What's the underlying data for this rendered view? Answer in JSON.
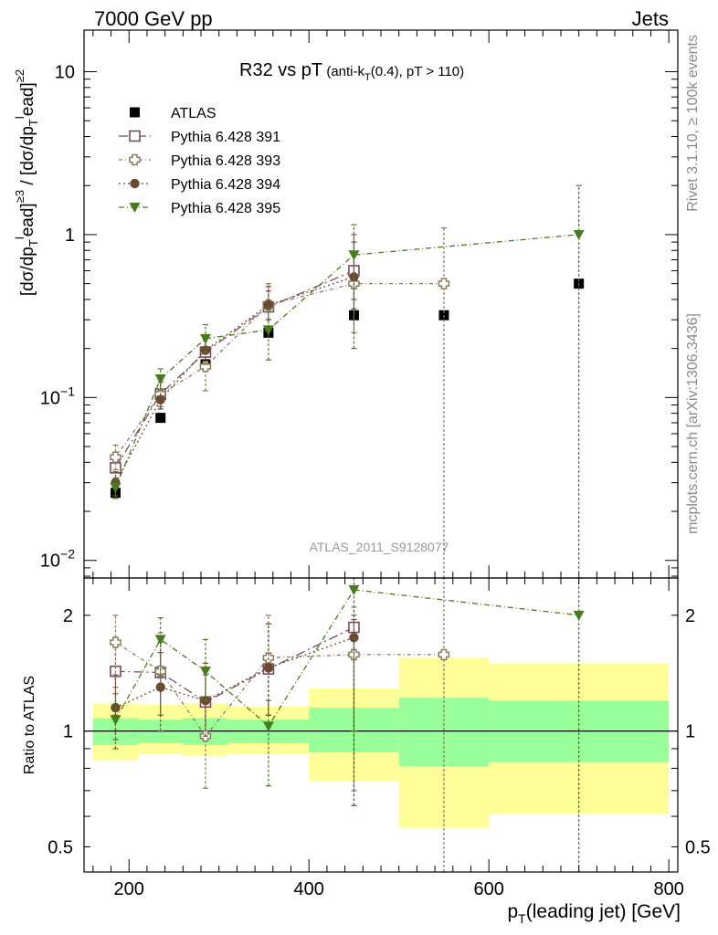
{
  "header": {
    "left": "7000 GeV pp",
    "right": "Jets"
  },
  "side_labels": {
    "rivet": "Rivet 3.1.10, ≥ 100k events",
    "mcplots": "mcplots.cern.ch [arXiv:1306.3436]"
  },
  "chart_data": [
    {
      "type": "scatter",
      "panel": "main",
      "title": "R32 vs pT",
      "title_sub": "(anti-k_T(0.4), pT > 110)",
      "watermark": "ATLAS_2011_S9128077",
      "ylabel": "[dσ/dp_T^lead]^{≥3} / [dσ/dp_T^lead]^{≥2}",
      "yscale": "log",
      "xlim": [
        150,
        810
      ],
      "ylim": [
        0.0078,
        18
      ],
      "y_ticks": [
        {
          "value": 0.01,
          "label": "10",
          "exp": "−2"
        },
        {
          "value": 0.1,
          "label": "10",
          "exp": "−1"
        },
        {
          "value": 1,
          "label": "1",
          "exp": ""
        },
        {
          "value": 10,
          "label": "10",
          "exp": ""
        }
      ],
      "legend_position": "top-left",
      "series": [
        {
          "name": "ATLAS",
          "marker": "filled-square",
          "color": "#000000",
          "dash": "none",
          "x": [
            185,
            235,
            285,
            355,
            450,
            550,
            700
          ],
          "y": [
            0.026,
            0.075,
            0.16,
            0.25,
            0.32,
            0.32,
            0.5
          ],
          "err_lo": [
            0,
            0,
            0,
            0,
            0,
            0,
            0
          ],
          "err_hi": [
            0,
            0,
            0,
            0,
            0,
            0,
            0
          ]
        },
        {
          "name": "Pythia 6.428 391",
          "marker": "open-square",
          "color": "#7b4b5e",
          "dash": "10,4,2,4",
          "x": [
            185,
            235,
            285,
            355,
            450
          ],
          "y": [
            0.037,
            0.105,
            0.19,
            0.36,
            0.6
          ],
          "err_lo": [
            0.03,
            0.088,
            0.16,
            0.3,
            0.4
          ],
          "err_hi": [
            0.044,
            0.124,
            0.23,
            0.45,
            1.0
          ]
        },
        {
          "name": "Pythia 6.428 393",
          "marker": "open-cross",
          "color": "#8a7a5a",
          "dash": "4,3,1,3",
          "x": [
            185,
            235,
            285,
            355,
            450,
            550
          ],
          "y": [
            0.043,
            0.105,
            0.155,
            0.37,
            0.5,
            0.5
          ],
          "err_lo": [
            0.036,
            0.085,
            0.11,
            0.27,
            0.25,
            0.004
          ],
          "err_hi": [
            0.051,
            0.128,
            0.2,
            0.5,
            1.0,
            1.1
          ]
        },
        {
          "name": "Pythia 6.428 394",
          "marker": "filled-circle",
          "color": "#6b4a32",
          "dash": "2,3",
          "x": [
            185,
            235,
            285,
            355,
            450
          ],
          "y": [
            0.03,
            0.097,
            0.195,
            0.37,
            0.55
          ],
          "err_lo": [
            0.025,
            0.085,
            0.16,
            0.3,
            0.35
          ],
          "err_hi": [
            0.035,
            0.11,
            0.23,
            0.48,
            0.9
          ]
        },
        {
          "name": "Pythia 6.428 395",
          "marker": "filled-triangle-down",
          "color": "#4a7a1e",
          "dash": "6,3,1,3",
          "x": [
            185,
            235,
            285,
            355,
            450,
            700
          ],
          "y": [
            0.028,
            0.13,
            0.23,
            0.26,
            0.75,
            1.0
          ],
          "err_lo": [
            0.024,
            0.11,
            0.19,
            0.17,
            0.2,
            0.004
          ],
          "err_hi": [
            0.032,
            0.15,
            0.28,
            0.35,
            1.15,
            2.0
          ]
        }
      ]
    },
    {
      "type": "scatter",
      "panel": "ratio",
      "ylabel": "Ratio to ATLAS",
      "xlabel": "p_T(leading jet) [GeV]",
      "yscale": "log",
      "xlim": [
        150,
        810
      ],
      "ylim": [
        0.43,
        2.5
      ],
      "x_ticks": [
        200,
        400,
        600,
        800
      ],
      "y_ticks": [
        {
          "value": 0.5,
          "label": "0.5"
        },
        {
          "value": 1,
          "label": "1"
        },
        {
          "value": 2,
          "label": "2"
        }
      ],
      "bands": [
        {
          "x0": 160,
          "x1": 210,
          "stat_lo": 0.92,
          "stat_hi": 1.08,
          "tot_lo": 0.84,
          "tot_hi": 1.18
        },
        {
          "x0": 210,
          "x1": 260,
          "stat_lo": 0.93,
          "stat_hi": 1.07,
          "tot_lo": 0.87,
          "tot_hi": 1.17
        },
        {
          "x0": 260,
          "x1": 310,
          "stat_lo": 0.92,
          "stat_hi": 1.08,
          "tot_lo": 0.86,
          "tot_hi": 1.18
        },
        {
          "x0": 310,
          "x1": 400,
          "stat_lo": 0.93,
          "stat_hi": 1.07,
          "tot_lo": 0.87,
          "tot_hi": 1.16
        },
        {
          "x0": 400,
          "x1": 500,
          "stat_lo": 0.88,
          "stat_hi": 1.15,
          "tot_lo": 0.74,
          "tot_hi": 1.29
        },
        {
          "x0": 500,
          "x1": 600,
          "stat_lo": 0.81,
          "stat_hi": 1.22,
          "tot_lo": 0.56,
          "tot_hi": 1.55
        },
        {
          "x0": 600,
          "x1": 800,
          "stat_lo": 0.83,
          "stat_hi": 1.2,
          "tot_lo": 0.61,
          "tot_hi": 1.5
        }
      ],
      "series": [
        {
          "name": "Pythia 6.428 391",
          "marker": "open-square",
          "color": "#7b4b5e",
          "dash": "10,4,2,4",
          "x": [
            185,
            235,
            285,
            355,
            450
          ],
          "y": [
            1.43,
            1.42,
            1.19,
            1.45,
            1.86
          ],
          "err_lo": [
            1.1,
            1.1,
            0.95,
            1.1,
            1.0
          ],
          "err_hi": [
            1.75,
            1.7,
            1.4,
            1.9,
            2.0
          ]
        },
        {
          "name": "Pythia 6.428 393",
          "marker": "open-cross",
          "color": "#8a7a5a",
          "dash": "4,3,1,3",
          "x": [
            185,
            235,
            285,
            355,
            450,
            550
          ],
          "y": [
            1.7,
            1.43,
            0.97,
            1.55,
            1.58,
            1.58
          ],
          "err_lo": [
            1.3,
            1.1,
            0.71,
            1.1,
            0.7,
            0.01
          ],
          "err_hi": [
            2.0,
            1.8,
            1.2,
            2.0,
            2.1,
            2.5
          ]
        },
        {
          "name": "Pythia 6.428 394",
          "marker": "filled-circle",
          "color": "#6b4a32",
          "dash": "2,3",
          "x": [
            185,
            235,
            285,
            355,
            450
          ],
          "y": [
            1.15,
            1.3,
            1.2,
            1.46,
            1.75
          ],
          "err_lo": [
            0.95,
            1.0,
            0.97,
            1.1,
            0.64
          ],
          "err_hi": [
            1.4,
            1.6,
            1.5,
            1.9,
            1.95
          ]
        },
        {
          "name": "Pythia 6.428 395",
          "marker": "filled-triangle-down",
          "color": "#4a7a1e",
          "dash": "6,3,1,3",
          "x": [
            185,
            235,
            285,
            355,
            450,
            700
          ],
          "y": [
            1.07,
            1.73,
            1.43,
            1.03,
            2.33,
            2.0
          ],
          "err_lo": [
            0.9,
            1.4,
            1.2,
            0.72,
            1.0,
            0.01
          ],
          "err_hi": [
            1.25,
            1.97,
            1.73,
            1.2,
            2.5,
            2.5
          ]
        }
      ]
    }
  ]
}
